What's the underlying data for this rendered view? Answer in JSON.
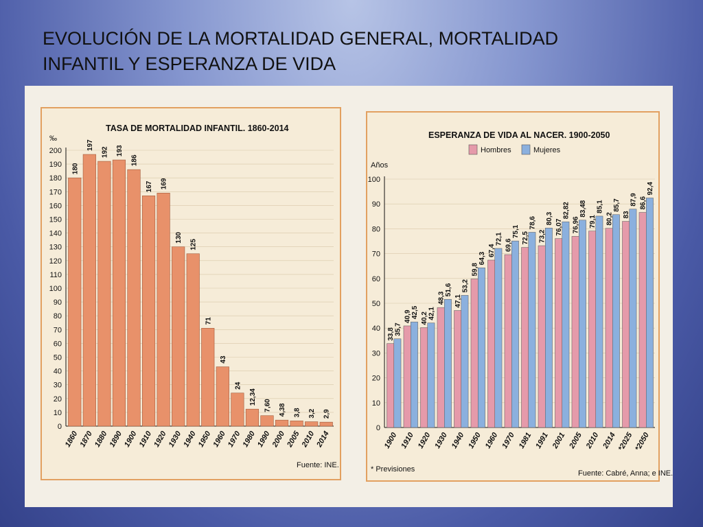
{
  "slide": {
    "title_line1": "EVOLUCIÓN DE LA MORTALIDAD GENERAL, MORTALIDAD",
    "title_line2": "INFANTIL Y ESPERANZA DE VIDA"
  },
  "colors": {
    "infant_bar": "#e8916a",
    "hombres": "#e59aaa",
    "mujeres": "#8bb0de",
    "frame": "#e2a060",
    "panel_bg": "#f6ecd8"
  },
  "chart_data": [
    {
      "type": "bar",
      "title": "TASA DE MORTALIDAD INFANTIL. 1860-2014",
      "ylabel": "‰",
      "ylim": [
        0,
        200
      ],
      "yticks": [
        0,
        10,
        20,
        30,
        40,
        50,
        60,
        70,
        80,
        90,
        100,
        110,
        120,
        130,
        140,
        150,
        160,
        170,
        180,
        190,
        200
      ],
      "categories": [
        "1860",
        "1870",
        "1880",
        "1890",
        "1900",
        "1910",
        "1920",
        "1930",
        "1940",
        "1950",
        "1960",
        "1970",
        "1980",
        "1990",
        "2000",
        "2005",
        "2010",
        "2014"
      ],
      "values": [
        180,
        197,
        192,
        193,
        186,
        167,
        169,
        130,
        125,
        71,
        43,
        24,
        12.34,
        7.6,
        4.38,
        3.8,
        3.2,
        2.9
      ],
      "value_labels": [
        "180",
        "197",
        "192",
        "193",
        "186",
        "167",
        "169",
        "130",
        "125",
        "71",
        "43",
        "24",
        "12,34",
        "7,60",
        "4,38",
        "3,8",
        "3,2",
        "2,9"
      ],
      "source": "Fuente: INE."
    },
    {
      "type": "bar",
      "title": "ESPERANZA DE VIDA AL NACER. 1900-2050",
      "ylabel": "Años",
      "ylim": [
        0,
        100
      ],
      "yticks": [
        0,
        10,
        20,
        30,
        40,
        50,
        60,
        70,
        80,
        90,
        100
      ],
      "categories": [
        "1900",
        "1910",
        "1920",
        "1930",
        "1940",
        "1950",
        "1960",
        "1970",
        "1981",
        "1991",
        "2001",
        "2005",
        "2010",
        "2014",
        "*2025",
        "*2050"
      ],
      "series": [
        {
          "name": "Hombres",
          "values": [
            33.8,
            40.9,
            40.2,
            48.3,
            47.1,
            59.8,
            67.4,
            69.6,
            72.5,
            73.2,
            76.07,
            76.96,
            79.1,
            80.2,
            83,
            86.6
          ],
          "value_labels": [
            "33,8",
            "40,9",
            "40,2",
            "48,3",
            "47,1",
            "59,8",
            "67,4",
            "69,6",
            "72,5",
            "73,2",
            "76,07",
            "76,96",
            "79,1",
            "80,2",
            "83",
            "86,6"
          ]
        },
        {
          "name": "Mujeres",
          "values": [
            35.7,
            42.5,
            42.1,
            51.6,
            53.2,
            64.3,
            72.1,
            75.1,
            78.6,
            80.3,
            82.82,
            83.48,
            85.1,
            85.7,
            87.9,
            92.4
          ],
          "value_labels": [
            "35,7",
            "42,5",
            "42,1",
            "51,6",
            "53,2",
            "64,3",
            "72,1",
            "75,1",
            "78,6",
            "80,3",
            "82,82",
            "83,48",
            "85,1",
            "85,7",
            "87,9",
            "92,4"
          ]
        }
      ],
      "legend": [
        "Hombres",
        "Mujeres"
      ],
      "legend_position": "top-left",
      "note": "* Previsiones",
      "source": "Fuente: Cabré, Anna; e INE."
    }
  ]
}
